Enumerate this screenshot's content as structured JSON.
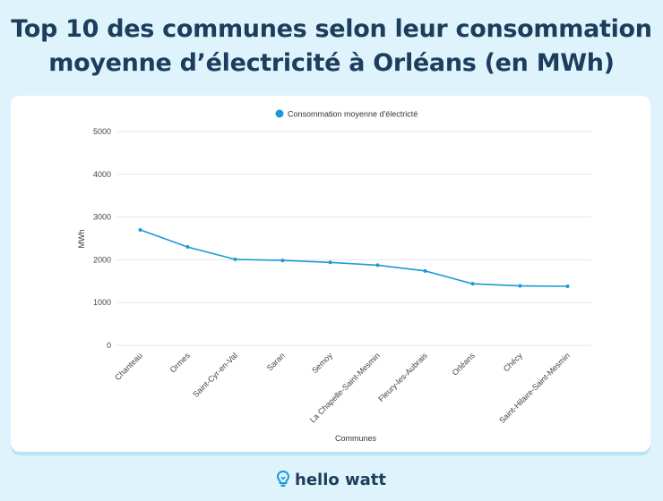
{
  "page": {
    "title_line1": "Top 10 des communes selon leur consommation",
    "title_line2": "moyenne d’électricité à Orléans (en MWh)",
    "brand": "hello watt",
    "colors": {
      "background": "#dff3fc",
      "title": "#1c3d5c",
      "series": "#1a9ad6",
      "grid": "#e6e6e6"
    }
  },
  "chart_data": {
    "type": "line",
    "title": "Top 10 des communes selon leur consommation moyenne d’électricité à Orléans (en MWh)",
    "xlabel": "Communes",
    "ylabel": "MWh",
    "ylim": [
      0,
      5000
    ],
    "yticks": [
      0,
      1000,
      2000,
      3000,
      4000,
      5000
    ],
    "grid": true,
    "legend_position": "top-center",
    "categories": [
      "Chanteau",
      "Ormes",
      "Saint-Cyr-en-Val",
      "Saran",
      "Semoy",
      "La Chapelle-Saint-Mesmin",
      "Fleury-les-Aubrais",
      "Orléans",
      "Chécy",
      "Saint-Hilaire-Saint-Mesmin"
    ],
    "series": [
      {
        "name": "Consommation moyenne d'électricté",
        "values": [
          2700,
          2300,
          2010,
          1985,
          1940,
          1875,
          1740,
          1440,
          1390,
          1380
        ]
      }
    ]
  }
}
